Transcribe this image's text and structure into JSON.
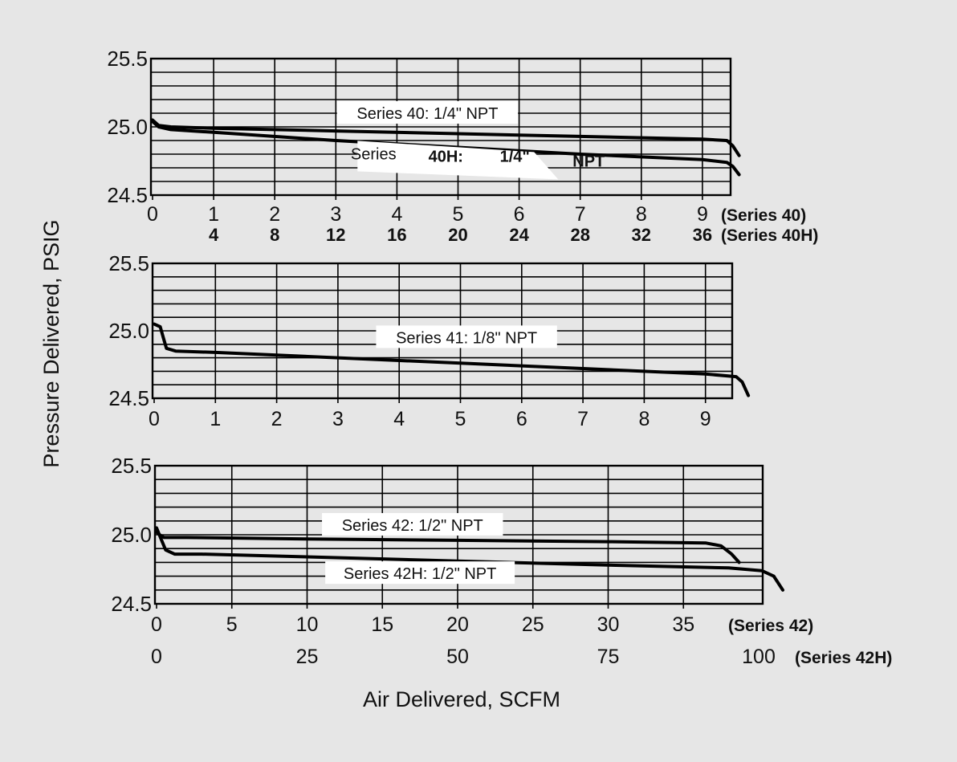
{
  "axes": {
    "ylabel": "Pressure Delivered, PSIG",
    "xlabel": "Air Delivered, SCFM"
  },
  "chart_data": [
    {
      "type": "line",
      "yticks": [
        "25.5",
        "25.0",
        "24.5"
      ],
      "ylim": [
        24.5,
        25.5
      ],
      "xlim": [
        0,
        9.5
      ],
      "grid": true,
      "x_axes": [
        {
          "name": "(Series  40)",
          "ticks": [
            0,
            1,
            2,
            3,
            4,
            5,
            6,
            7,
            8,
            9
          ],
          "labels": [
            "0",
            "1",
            "2",
            "3",
            "4",
            "5",
            "6",
            "7",
            "8",
            "9"
          ]
        },
        {
          "name": "(Series  40H)",
          "ticks": [
            1,
            2,
            3,
            4,
            5,
            6,
            7,
            8,
            9
          ],
          "labels": [
            "4",
            "8",
            "12",
            "16",
            "20",
            "24",
            "28",
            "32",
            "36"
          ]
        }
      ],
      "series": [
        {
          "name": "Series 40: 1/4\" NPT",
          "x": [
            0,
            0.1,
            0.3,
            1,
            3,
            5,
            7,
            9,
            9.4,
            9.5,
            9.6
          ],
          "y": [
            25.05,
            25.01,
            25.0,
            24.99,
            24.97,
            24.95,
            24.93,
            24.91,
            24.9,
            24.86,
            24.79
          ]
        },
        {
          "name": "Series 40H: 1/4\" NPT",
          "x": [
            0,
            0.1,
            0.3,
            1,
            3,
            5,
            7,
            9,
            9.4,
            9.5,
            9.6
          ],
          "y": [
            25.04,
            25.0,
            24.98,
            24.96,
            24.9,
            24.85,
            24.8,
            24.76,
            24.74,
            24.71,
            24.65
          ]
        }
      ],
      "annotations": [
        {
          "text": "Series 40: 1/4\" NPT",
          "at": [
            4.5,
            25.1
          ]
        },
        {
          "parts": [
            "Series",
            "40H:",
            "1/4\"",
            "NPT"
          ],
          "at": [
            4.8,
            24.78
          ]
        }
      ]
    },
    {
      "type": "line",
      "yticks": [
        "25.5",
        "25.0",
        "24.5"
      ],
      "ylim": [
        24.5,
        25.5
      ],
      "xlim": [
        0,
        9.5
      ],
      "grid": true,
      "x_axes": [
        {
          "ticks": [
            0,
            1,
            2,
            3,
            4,
            5,
            6,
            7,
            8,
            9
          ],
          "labels": [
            "0",
            "1",
            "2",
            "3",
            "4",
            "5",
            "6",
            "7",
            "8",
            "9"
          ]
        }
      ],
      "series": [
        {
          "name": "Series 41: 1/8\" NPT",
          "x": [
            0,
            0.1,
            0.15,
            0.2,
            0.35,
            1,
            3,
            5,
            7,
            9,
            9.5,
            9.6,
            9.7
          ],
          "y": [
            25.05,
            25.03,
            24.95,
            24.87,
            24.85,
            24.84,
            24.8,
            24.76,
            24.72,
            24.68,
            24.66,
            24.62,
            24.52
          ]
        }
      ],
      "annotations": [
        {
          "text": "Series 41: 1/8\" NPT",
          "at": [
            5.1,
            24.95
          ]
        }
      ]
    },
    {
      "type": "line",
      "yticks": [
        "25.5",
        "25.0",
        "24.5"
      ],
      "ylim": [
        24.5,
        25.5
      ],
      "xlim": [
        0,
        40
      ],
      "grid": true,
      "x_axes": [
        {
          "name": "(Series  42)",
          "ticks": [
            0,
            5,
            10,
            15,
            20,
            25,
            30,
            35
          ],
          "labels": [
            "0",
            "5",
            "10",
            "15",
            "20",
            "25",
            "30",
            "35"
          ]
        },
        {
          "name": "(Series  42H)",
          "ticks": [
            0,
            10,
            20,
            30,
            40
          ],
          "labels": [
            "0",
            "25",
            "50",
            "75",
            "100"
          ]
        }
      ],
      "series": [
        {
          "name": "Series 42: 1/2\" NPT",
          "x": [
            0,
            0.2,
            0.5,
            2,
            10,
            20,
            30,
            36.5,
            37.5,
            38.2,
            38.7
          ],
          "y": [
            25.02,
            25.0,
            24.98,
            24.98,
            24.97,
            24.96,
            24.95,
            24.94,
            24.92,
            24.86,
            24.8
          ]
        },
        {
          "name": "Series 42H: 1/2\" NPT",
          "x": [
            0,
            0.3,
            0.6,
            1.2,
            3,
            10,
            20,
            30,
            38,
            40.2,
            41,
            41.6
          ],
          "y": [
            25.05,
            24.97,
            24.89,
            24.86,
            24.86,
            24.84,
            24.81,
            24.78,
            24.76,
            24.74,
            24.7,
            24.6
          ]
        }
      ],
      "annotations": [
        {
          "text": "Series 42: 1/2\" NPT",
          "at": [
            17,
            25.07
          ]
        },
        {
          "text": "Series 42H: 1/2\" NPT",
          "at": [
            17.5,
            24.72
          ]
        }
      ]
    }
  ]
}
